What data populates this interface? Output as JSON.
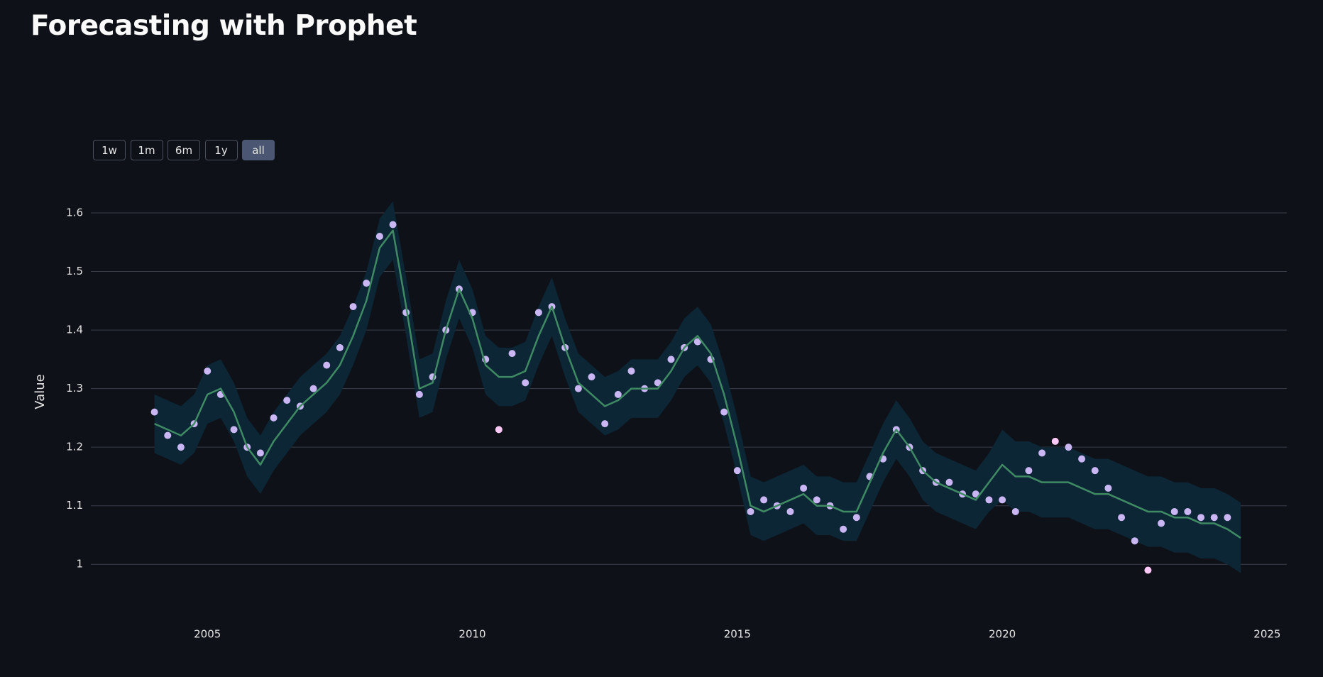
{
  "header": {
    "title": "Forecasting with Prophet"
  },
  "range_buttons": {
    "labels": [
      "1w",
      "1m",
      "6m",
      "1y",
      "all"
    ],
    "active": 4
  },
  "chart_data": {
    "type": "forecast",
    "y_label": "Value",
    "xlim": [
      2002.8,
      2025.37
    ],
    "xticks": [
      2005,
      2010,
      2015,
      2020,
      2025
    ],
    "ylim": [
      0.93,
      1.64
    ],
    "yticks": [
      1,
      1.1,
      1.2,
      1.3,
      1.4,
      1.5,
      1.6
    ],
    "grid": true,
    "x": [
      2004,
      2004.25,
      2004.5,
      2004.75,
      2005,
      2005.25,
      2005.5,
      2005.75,
      2006,
      2006.25,
      2006.5,
      2006.75,
      2007,
      2007.25,
      2007.5,
      2007.75,
      2008,
      2008.25,
      2008.5,
      2008.75,
      2009,
      2009.25,
      2009.5,
      2009.75,
      2010,
      2010.25,
      2010.5,
      2010.75,
      2011,
      2011.25,
      2011.5,
      2011.75,
      2012,
      2012.25,
      2012.5,
      2012.75,
      2013,
      2013.25,
      2013.5,
      2013.75,
      2014,
      2014.25,
      2014.5,
      2014.75,
      2015,
      2015.25,
      2015.5,
      2015.75,
      2016,
      2016.25,
      2016.5,
      2016.75,
      2017,
      2017.25,
      2017.5,
      2017.75,
      2018,
      2018.25,
      2018.5,
      2018.75,
      2019,
      2019.25,
      2019.5,
      2019.75,
      2020,
      2020.25,
      2020.5,
      2020.75,
      2021,
      2021.25,
      2021.5,
      2021.75,
      2022,
      2022.25,
      2022.5,
      2022.75,
      2023,
      2023.25,
      2023.5,
      2023.75,
      2024,
      2024.25,
      2024.5
    ],
    "observed": {
      "color": "#c9b6f3",
      "outside_color": "#ffc8f6",
      "values": [
        1.26,
        1.22,
        1.2,
        1.24,
        1.33,
        1.29,
        1.23,
        1.2,
        1.19,
        1.25,
        1.28,
        1.27,
        1.3,
        1.34,
        1.37,
        1.44,
        1.48,
        1.56,
        1.58,
        1.43,
        1.29,
        1.32,
        1.4,
        1.47,
        1.43,
        1.35,
        1.23,
        1.36,
        1.31,
        1.43,
        1.44,
        1.37,
        1.3,
        1.32,
        1.24,
        1.29,
        1.33,
        1.3,
        1.31,
        1.35,
        1.37,
        1.38,
        1.35,
        1.26,
        1.16,
        1.09,
        1.11,
        1.1,
        1.09,
        1.13,
        1.11,
        1.1,
        1.06,
        1.08,
        1.15,
        1.18,
        1.23,
        1.2,
        1.16,
        1.14,
        1.14,
        1.12,
        1.12,
        1.11,
        1.11,
        1.09,
        1.16,
        1.19,
        1.21,
        1.2,
        1.18,
        1.16,
        1.13,
        1.08,
        1.04,
        0.99,
        1.07,
        1.09,
        1.09,
        1.08,
        1.08,
        1.08,
        null
      ]
    },
    "trend": {
      "color": "#3f8a63",
      "values": [
        1.24,
        1.23,
        1.22,
        1.24,
        1.29,
        1.3,
        1.26,
        1.2,
        1.17,
        1.21,
        1.24,
        1.27,
        1.29,
        1.31,
        1.34,
        1.39,
        1.45,
        1.54,
        1.57,
        1.44,
        1.3,
        1.31,
        1.4,
        1.47,
        1.42,
        1.34,
        1.32,
        1.32,
        1.33,
        1.39,
        1.44,
        1.37,
        1.31,
        1.29,
        1.27,
        1.28,
        1.3,
        1.3,
        1.3,
        1.33,
        1.37,
        1.39,
        1.36,
        1.29,
        1.2,
        1.1,
        1.09,
        1.1,
        1.11,
        1.12,
        1.1,
        1.1,
        1.09,
        1.09,
        1.14,
        1.19,
        1.23,
        1.2,
        1.16,
        1.14,
        1.13,
        1.12,
        1.11,
        1.14,
        1.17,
        1.15,
        1.15,
        1.14,
        1.14,
        1.14,
        1.13,
        1.12,
        1.12,
        1.11,
        1.1,
        1.09,
        1.09,
        1.08,
        1.08,
        1.07,
        1.07,
        1.06,
        1.045
      ]
    },
    "band": {
      "color": "#0c2636",
      "upper": [
        1.29,
        1.28,
        1.27,
        1.29,
        1.34,
        1.35,
        1.31,
        1.25,
        1.22,
        1.26,
        1.29,
        1.32,
        1.34,
        1.36,
        1.39,
        1.44,
        1.5,
        1.59,
        1.62,
        1.49,
        1.35,
        1.36,
        1.45,
        1.52,
        1.47,
        1.39,
        1.37,
        1.37,
        1.38,
        1.44,
        1.49,
        1.42,
        1.36,
        1.34,
        1.32,
        1.33,
        1.35,
        1.35,
        1.35,
        1.38,
        1.42,
        1.44,
        1.41,
        1.34,
        1.25,
        1.15,
        1.14,
        1.15,
        1.16,
        1.17,
        1.15,
        1.15,
        1.14,
        1.14,
        1.19,
        1.24,
        1.28,
        1.25,
        1.21,
        1.19,
        1.18,
        1.17,
        1.16,
        1.19,
        1.23,
        1.21,
        1.21,
        1.2,
        1.2,
        1.2,
        1.19,
        1.18,
        1.18,
        1.17,
        1.16,
        1.15,
        1.15,
        1.14,
        1.14,
        1.13,
        1.13,
        1.12,
        1.105
      ],
      "lower": [
        1.19,
        1.18,
        1.17,
        1.19,
        1.24,
        1.25,
        1.21,
        1.15,
        1.12,
        1.16,
        1.19,
        1.22,
        1.24,
        1.26,
        1.29,
        1.34,
        1.4,
        1.49,
        1.52,
        1.39,
        1.25,
        1.26,
        1.35,
        1.42,
        1.37,
        1.29,
        1.27,
        1.27,
        1.28,
        1.34,
        1.39,
        1.32,
        1.26,
        1.24,
        1.22,
        1.23,
        1.25,
        1.25,
        1.25,
        1.28,
        1.32,
        1.34,
        1.31,
        1.24,
        1.15,
        1.05,
        1.04,
        1.05,
        1.06,
        1.07,
        1.05,
        1.05,
        1.04,
        1.04,
        1.09,
        1.14,
        1.18,
        1.15,
        1.11,
        1.09,
        1.08,
        1.07,
        1.06,
        1.09,
        1.11,
        1.09,
        1.09,
        1.08,
        1.08,
        1.08,
        1.07,
        1.06,
        1.06,
        1.05,
        1.04,
        1.03,
        1.03,
        1.02,
        1.02,
        1.01,
        1.01,
        1.0,
        0.985
      ]
    }
  }
}
